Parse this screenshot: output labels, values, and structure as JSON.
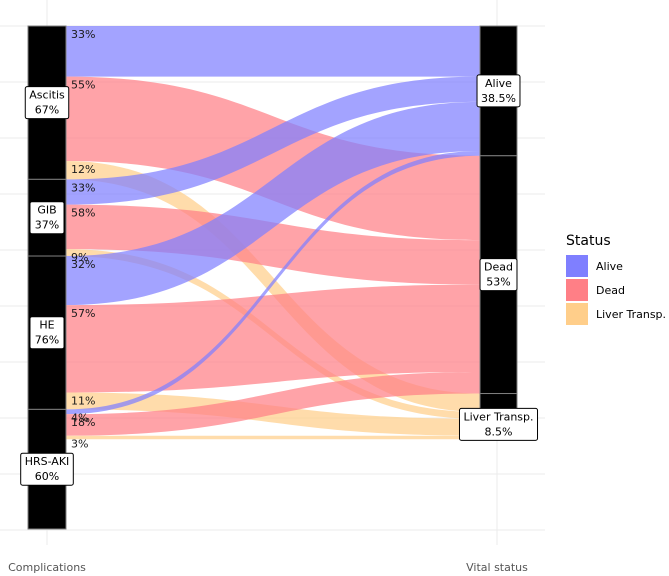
{
  "chart_data": {
    "type": "alluvial",
    "xlabel_left": "Complications",
    "xlabel_right": "Vital status",
    "legend": {
      "title": "Status",
      "items": [
        {
          "name": "Alive",
          "label": "Alive",
          "color": "#7F7FFF"
        },
        {
          "name": "Dead",
          "label": "Dead",
          "color": "#FF7F86"
        },
        {
          "name": "Liver Transp.",
          "label": "Liver Transp.",
          "color": "#FFCE8A"
        }
      ]
    },
    "left_nodes": [
      {
        "name": "Ascitis",
        "label": "Ascitis",
        "value_label": "67%",
        "weight": 1.0
      },
      {
        "name": "GIB",
        "label": "GIB",
        "value_label": "37%",
        "weight": 0.5
      },
      {
        "name": "HE",
        "label": "HE",
        "value_label": "76%",
        "weight": 1.0
      },
      {
        "name": "HRS-AKI",
        "label": "HRS-AKI",
        "value_label": "60%",
        "weight": 0.78
      }
    ],
    "right_nodes": [
      {
        "name": "Alive",
        "label": "Alive",
        "value_label": "38.5%",
        "weight": 0.385
      },
      {
        "name": "Dead",
        "label": "Dead",
        "value_label": "53%",
        "weight": 0.53
      },
      {
        "name": "Liver Transp.",
        "label": "Liver Transp.",
        "value_label": "8.5%",
        "weight": 0.085
      }
    ],
    "flows": [
      {
        "source": "Ascitis",
        "target": "Alive",
        "label": "33%",
        "value": 0.33
      },
      {
        "source": "Ascitis",
        "target": "Dead",
        "label": "55%",
        "value": 0.55
      },
      {
        "source": "Ascitis",
        "target": "Liver Transp.",
        "label": "12%",
        "value": 0.12
      },
      {
        "source": "GIB",
        "target": "Alive",
        "label": "33%",
        "value": 0.33
      },
      {
        "source": "GIB",
        "target": "Dead",
        "label": "58%",
        "value": 0.58
      },
      {
        "source": "GIB",
        "target": "Liver Transp.",
        "label": "9%",
        "value": 0.09
      },
      {
        "source": "HE",
        "target": "Alive",
        "label": "32%",
        "value": 0.32
      },
      {
        "source": "HE",
        "target": "Dead",
        "label": "57%",
        "value": 0.57
      },
      {
        "source": "HE",
        "target": "Liver Transp.",
        "label": "11%",
        "value": 0.11
      },
      {
        "source": "HRS-AKI",
        "target": "Alive",
        "label": "4%",
        "value": 0.04
      },
      {
        "source": "HRS-AKI",
        "target": "Dead",
        "label": "18%",
        "value": 0.18
      },
      {
        "source": "HRS-AKI",
        "target": "Liver Transp.",
        "label": "3%",
        "value": 0.03
      }
    ]
  }
}
